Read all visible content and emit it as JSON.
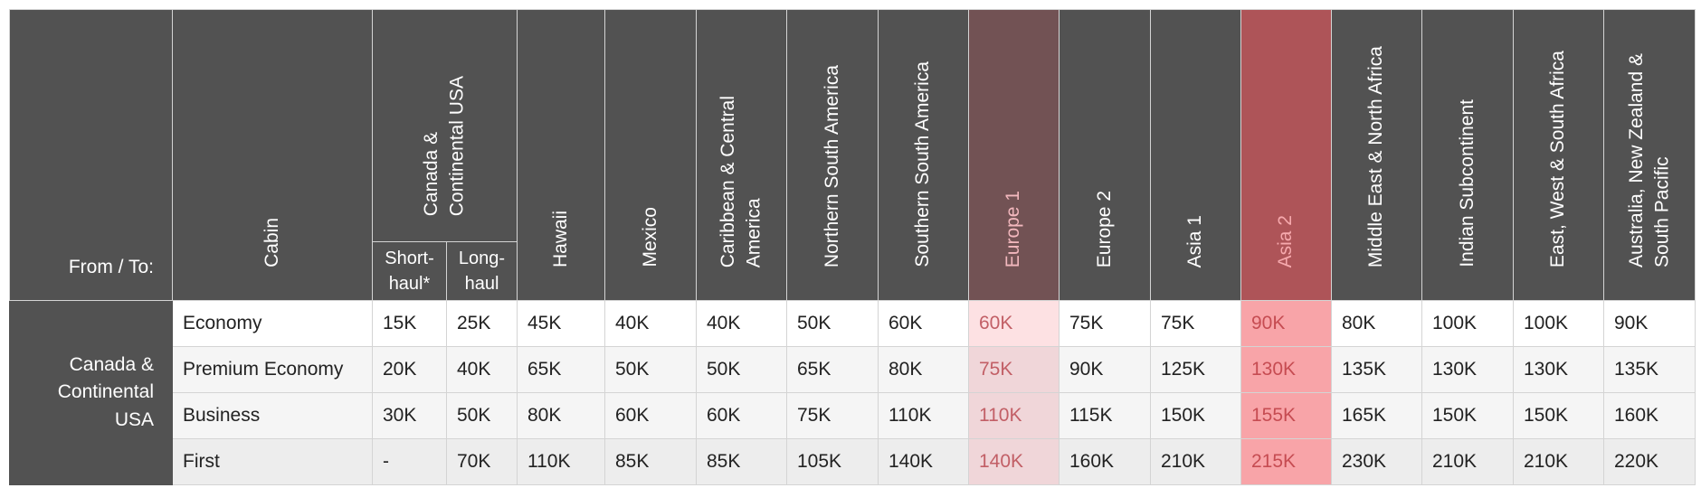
{
  "header": {
    "from_to": "From / To:",
    "cabin": "Cabin",
    "canada_group": [
      "Canada &",
      "Continental USA"
    ],
    "short_haul": [
      "Short-",
      "haul*"
    ],
    "long_haul": [
      "Long-",
      "haul"
    ],
    "regions": [
      {
        "key": "hawaii",
        "lines": [
          "Hawaii"
        ],
        "highlight": "none"
      },
      {
        "key": "mexico",
        "lines": [
          "Mexico"
        ],
        "highlight": "none"
      },
      {
        "key": "caribbean",
        "lines": [
          "Caribbean & Central",
          "America"
        ],
        "highlight": "none"
      },
      {
        "key": "n-south-america",
        "lines": [
          "Northern South America"
        ],
        "highlight": "none"
      },
      {
        "key": "s-south-america",
        "lines": [
          "Southern South America"
        ],
        "highlight": "none"
      },
      {
        "key": "europe-1",
        "lines": [
          "Europe 1"
        ],
        "highlight": "eu1"
      },
      {
        "key": "europe-2",
        "lines": [
          "Europe 2"
        ],
        "highlight": "none"
      },
      {
        "key": "asia-1",
        "lines": [
          "Asia 1"
        ],
        "highlight": "none"
      },
      {
        "key": "asia-2",
        "lines": [
          "Asia 2"
        ],
        "highlight": "as2"
      },
      {
        "key": "middle-east",
        "lines": [
          "Middle East & North Africa"
        ],
        "highlight": "none"
      },
      {
        "key": "indian-subcontinent",
        "lines": [
          "Indian Subcontinent"
        ],
        "highlight": "none"
      },
      {
        "key": "africa",
        "lines": [
          "East, West & South Africa"
        ],
        "highlight": "none"
      },
      {
        "key": "oceania",
        "lines": [
          "Australia, New Zealand &",
          "South Pacific"
        ],
        "highlight": "none"
      }
    ]
  },
  "origin": [
    "Canada &",
    "Continental",
    "USA"
  ],
  "rows": [
    {
      "cabin": "Economy",
      "values": [
        "15K",
        "25K",
        "45K",
        "40K",
        "40K",
        "50K",
        "60K",
        "60K",
        "75K",
        "75K",
        "90K",
        "80K",
        "100K",
        "100K",
        "90K"
      ]
    },
    {
      "cabin": "Premium Economy",
      "values": [
        "20K",
        "40K",
        "65K",
        "50K",
        "50K",
        "65K",
        "80K",
        "75K",
        "90K",
        "125K",
        "130K",
        "135K",
        "130K",
        "130K",
        "135K"
      ]
    },
    {
      "cabin": "Business",
      "values": [
        "30K",
        "50K",
        "80K",
        "60K",
        "60K",
        "75K",
        "110K",
        "110K",
        "115K",
        "150K",
        "155K",
        "165K",
        "150K",
        "150K",
        "160K"
      ]
    },
    {
      "cabin": "First",
      "values": [
        "-",
        "70K",
        "110K",
        "85K",
        "85K",
        "105K",
        "140K",
        "140K",
        "160K",
        "210K",
        "215K",
        "230K",
        "210K",
        "210K",
        "220K"
      ]
    }
  ],
  "colors": {
    "header_bg": "#525252",
    "europe1_header": "#725254",
    "asia2_header": "#ae5458",
    "europe1_cell": "#f0d6d9",
    "asia2_cell": "#f8a4a8"
  }
}
